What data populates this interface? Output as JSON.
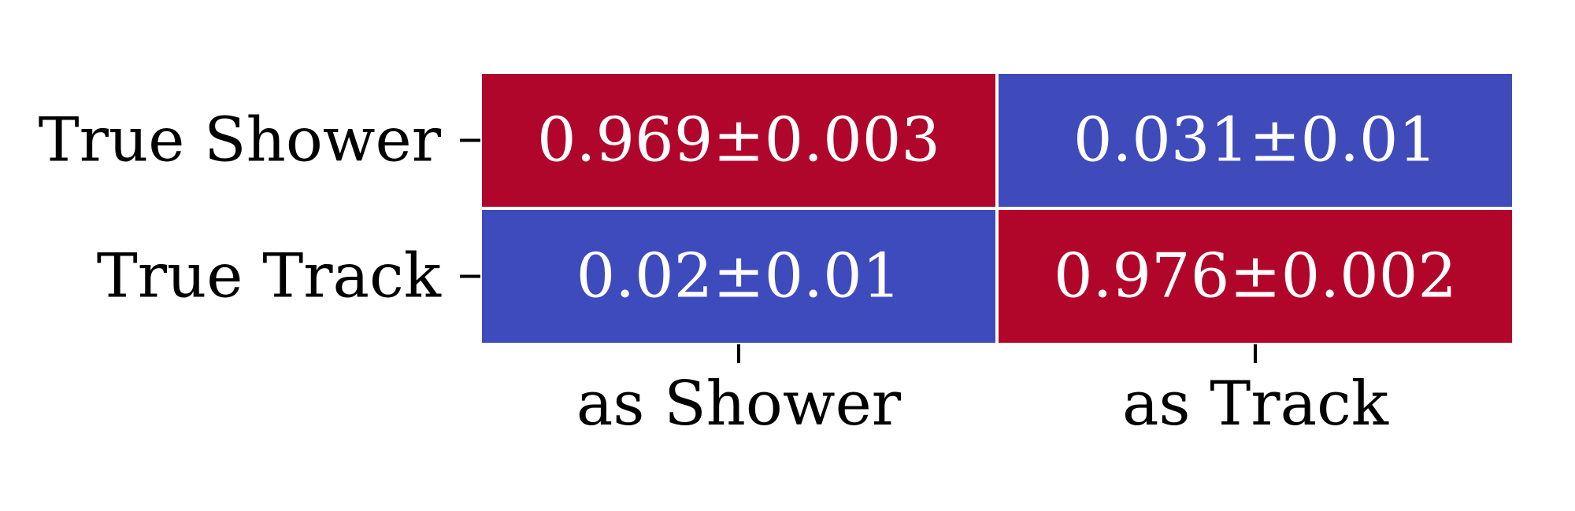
{
  "chart_data": {
    "type": "heatmap",
    "rows": [
      "True Shower",
      "True Track"
    ],
    "columns": [
      "as Shower",
      "as Track"
    ],
    "values": [
      [
        0.969,
        0.031
      ],
      [
        0.02,
        0.976
      ]
    ],
    "cell_labels": [
      [
        "0.969±0.003",
        "0.031±0.01"
      ],
      [
        "0.02±0.01",
        "0.976±0.002"
      ]
    ],
    "colormap": {
      "low": "#3b4cc0",
      "high": "#b40426"
    },
    "value_range": [
      0,
      1
    ],
    "colorbar": false,
    "grid": false
  }
}
